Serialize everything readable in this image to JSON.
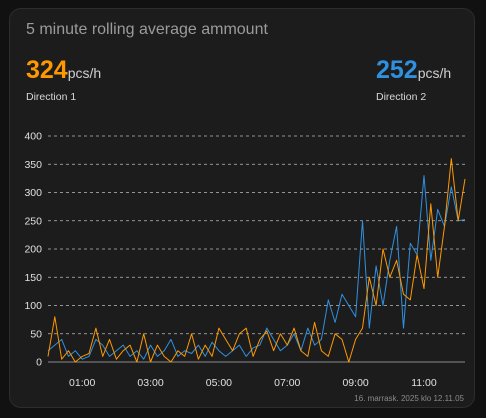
{
  "card": {
    "title": "5 minute rolling average ammount"
  },
  "stats": [
    {
      "value": "324",
      "unit": "pcs/h",
      "label": "Direction 1",
      "color": "#ff9800"
    },
    {
      "value": "252",
      "unit": "pcs/h",
      "label": "Direction 2",
      "color": "#3090e0"
    }
  ],
  "footer": {
    "timestamp": "16. marrask. 2025 klo 12.11.05"
  },
  "chart_data": {
    "type": "line",
    "x_unit": "hours",
    "x_range": [
      0,
      12.2
    ],
    "x_ticks": [
      1,
      3,
      5,
      7,
      9,
      11
    ],
    "x_tick_labels": [
      "01:00",
      "03:00",
      "05:00",
      "07:00",
      "09:00",
      "11:00"
    ],
    "ylim": [
      0,
      400
    ],
    "y_ticks": [
      0,
      50,
      100,
      150,
      200,
      250,
      300,
      350,
      400
    ],
    "grid": true,
    "series": [
      {
        "color": "#ff9800",
        "x": [
          0,
          0.2,
          0.4,
          0.6,
          0.8,
          1,
          1.2,
          1.4,
          1.6,
          1.8,
          2,
          2.2,
          2.4,
          2.6,
          2.8,
          3,
          3.2,
          3.4,
          3.6,
          3.8,
          4,
          4.2,
          4.4,
          4.6,
          4.8,
          5,
          5.2,
          5.4,
          5.6,
          5.8,
          6,
          6.2,
          6.4,
          6.6,
          6.8,
          7,
          7.2,
          7.4,
          7.6,
          7.8,
          8,
          8.2,
          8.4,
          8.6,
          8.8,
          9,
          9.2,
          9.4,
          9.6,
          9.8,
          10,
          10.2,
          10.4,
          10.6,
          10.8,
          11,
          11.2,
          11.4,
          11.6,
          11.8,
          12,
          12.2
        ],
        "y": [
          10,
          80,
          5,
          20,
          0,
          10,
          15,
          60,
          10,
          40,
          5,
          20,
          30,
          0,
          50,
          0,
          30,
          10,
          0,
          20,
          10,
          50,
          5,
          30,
          10,
          60,
          40,
          20,
          50,
          60,
          10,
          40,
          55,
          20,
          50,
          30,
          60,
          20,
          10,
          70,
          20,
          10,
          50,
          40,
          0,
          40,
          60,
          150,
          100,
          200,
          150,
          180,
          120,
          110,
          190,
          130,
          280,
          150,
          240,
          360,
          250,
          324
        ]
      },
      {
        "color": "#3090e0",
        "x": [
          0,
          0.2,
          0.4,
          0.6,
          0.8,
          1,
          1.2,
          1.4,
          1.6,
          1.8,
          2,
          2.2,
          2.4,
          2.6,
          2.8,
          3,
          3.2,
          3.4,
          3.6,
          3.8,
          4,
          4.2,
          4.4,
          4.6,
          4.8,
          5,
          5.2,
          5.4,
          5.6,
          5.8,
          6,
          6.2,
          6.4,
          6.6,
          6.8,
          7,
          7.2,
          7.4,
          7.6,
          7.8,
          8,
          8.2,
          8.4,
          8.6,
          8.8,
          9,
          9.2,
          9.4,
          9.6,
          9.8,
          10,
          10.2,
          10.4,
          10.6,
          10.8,
          11,
          11.2,
          11.4,
          11.6,
          11.8,
          12,
          12.2
        ],
        "y": [
          20,
          30,
          40,
          10,
          20,
          5,
          10,
          40,
          30,
          10,
          20,
          30,
          10,
          20,
          5,
          30,
          10,
          20,
          40,
          10,
          20,
          15,
          30,
          10,
          35,
          20,
          10,
          20,
          30,
          10,
          25,
          30,
          60,
          40,
          20,
          30,
          50,
          20,
          60,
          30,
          40,
          110,
          70,
          120,
          100,
          80,
          250,
          60,
          170,
          100,
          180,
          240,
          60,
          210,
          190,
          330,
          180,
          270,
          240,
          310,
          250,
          252
        ]
      }
    ]
  }
}
